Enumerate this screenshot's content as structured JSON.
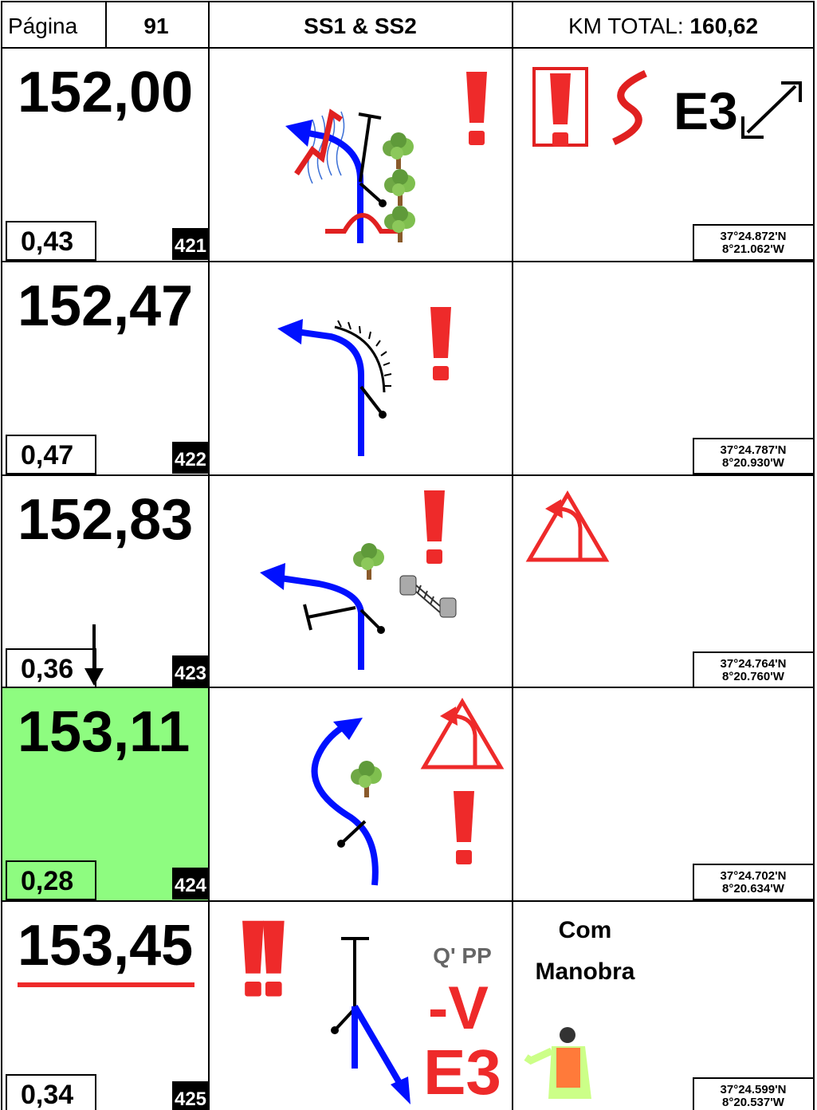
{
  "header": {
    "page_label": "Página",
    "page_number": "91",
    "stage": "SS1 & SS2",
    "km_total_label": "KM TOTAL:",
    "km_total": "160,62"
  },
  "rows": [
    {
      "distance": "152,00",
      "partial": "0,43",
      "number": "421",
      "latitude": "37°24.872'N",
      "longitude": "8°21.062'W",
      "icon_text": "E3"
    },
    {
      "distance": "152,47",
      "partial": "0,47",
      "number": "422",
      "latitude": "37°24.787'N",
      "longitude": "8°20.930'W"
    },
    {
      "distance": "152,83",
      "partial": "0,36",
      "number": "423",
      "latitude": "37°24.764'N",
      "longitude": "8°20.760'W"
    },
    {
      "distance": "153,11",
      "partial": "0,28",
      "number": "424",
      "latitude": "37°24.702'N",
      "longitude": "8°20.634'W"
    },
    {
      "distance": "153,45",
      "partial": "0,34",
      "number": "425",
      "latitude": "37°24.599'N",
      "longitude": "8°20.537'W",
      "icon_texts": [
        "Q' PP",
        "-V",
        "E3"
      ],
      "notes": [
        "Com",
        "Manobra"
      ]
    }
  ]
}
